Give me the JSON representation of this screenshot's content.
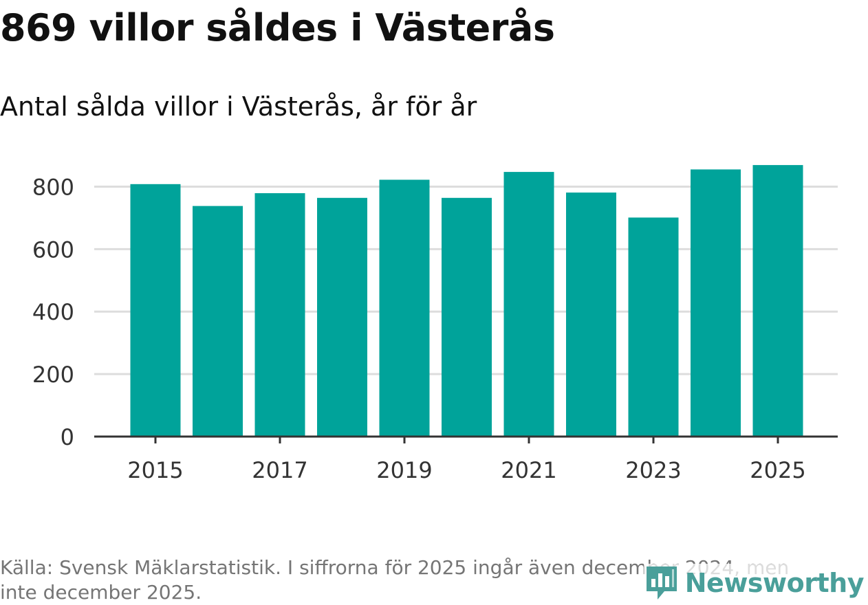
{
  "header": {
    "title": "869 villor såldes i Västerås",
    "subtitle": "Antal sålda villor i Västerås, år för år"
  },
  "footer": {
    "source": "Källa: Svensk Mäklarstatistik. I siffrorna för 2025 ingår även december 2024, men inte december 2025.",
    "brand": "Newsworthy"
  },
  "colors": {
    "bar": "#00A39A",
    "grid": "#dddddd",
    "axis": "#333333",
    "tick_text": "#333333",
    "brand": "#4a9f9a"
  },
  "chart_data": {
    "type": "bar",
    "title": "Antal sålda villor i Västerås, år för år",
    "xlabel": "",
    "ylabel": "",
    "categories": [
      "2015",
      "2016",
      "2017",
      "2018",
      "2019",
      "2020",
      "2021",
      "2022",
      "2023",
      "2024",
      "2025"
    ],
    "values": [
      808,
      738,
      779,
      764,
      822,
      764,
      847,
      781,
      701,
      855,
      869
    ],
    "ylim": [
      0,
      900
    ],
    "yticks": [
      0,
      200,
      400,
      600,
      800
    ],
    "xtick_labels": [
      "2015",
      "2017",
      "2019",
      "2021",
      "2023",
      "2025"
    ],
    "grid": true,
    "legend": "none"
  }
}
